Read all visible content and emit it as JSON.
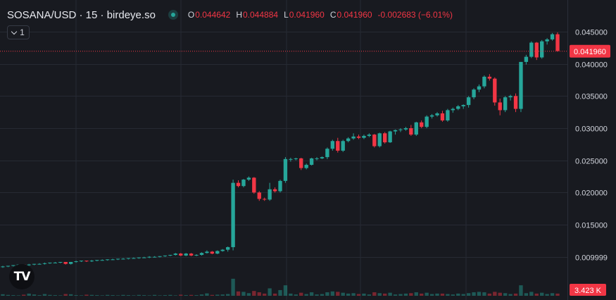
{
  "header": {
    "title": "SOSANA/USD · 15 · birdeye.so",
    "ohlc": {
      "o_label": "O",
      "o": "0.044642",
      "h_label": "H",
      "h": "0.044884",
      "l_label": "L",
      "l": "0.041960",
      "c_label": "C",
      "c": "0.041960",
      "change": "-0.002683 (−6.01%)"
    },
    "indicator_count": "1"
  },
  "logo": {
    "text": "TV",
    "icon": "tradingview-logo-icon"
  },
  "colors": {
    "up": "#26a69a",
    "down": "#f23645",
    "background": "#181a20",
    "grid": "#262a33",
    "axis_text": "#d1d4dc"
  },
  "chart_data": {
    "type": "candlestick",
    "y_axis": {
      "ticks": [
        "0.045000",
        "0.040000",
        "0.035000",
        "0.030000",
        "0.025000",
        "0.020000",
        "0.015000",
        "0.009999"
      ],
      "tick_values": [
        0.045,
        0.04,
        0.035,
        0.03,
        0.025,
        0.02,
        0.015,
        0.009999
      ],
      "range": [
        0.0063,
        0.0477
      ]
    },
    "last_price": {
      "value": 0.04196,
      "label": "0.041960"
    },
    "volume_label": "3.423 K",
    "grid": true,
    "candles": [
      [
        0.0084,
        0.0086,
        0.0083,
        0.0085
      ],
      [
        0.0085,
        0.0086,
        0.0084,
        0.0086
      ],
      [
        0.0086,
        0.0087,
        0.0085,
        0.0087
      ],
      [
        0.0087,
        0.0088,
        0.0086,
        0.0088
      ],
      [
        0.0088,
        0.0088,
        0.0086,
        0.0087
      ],
      [
        0.0087,
        0.0089,
        0.0086,
        0.0088
      ],
      [
        0.0088,
        0.0089,
        0.0087,
        0.0089
      ],
      [
        0.0089,
        0.009,
        0.0088,
        0.0089
      ],
      [
        0.0089,
        0.0091,
        0.0088,
        0.009
      ],
      [
        0.009,
        0.0091,
        0.0089,
        0.0091
      ],
      [
        0.0091,
        0.0092,
        0.009,
        0.0091
      ],
      [
        0.0091,
        0.0092,
        0.009,
        0.0092
      ],
      [
        0.0092,
        0.0092,
        0.0088,
        0.0089
      ],
      [
        0.0089,
        0.0092,
        0.0088,
        0.0092
      ],
      [
        0.0092,
        0.0094,
        0.0091,
        0.0093
      ],
      [
        0.0093,
        0.0094,
        0.0092,
        0.0094
      ],
      [
        0.0094,
        0.0094,
        0.0092,
        0.0093
      ],
      [
        0.0093,
        0.0095,
        0.0092,
        0.0094
      ],
      [
        0.0094,
        0.0095,
        0.0093,
        0.0095
      ],
      [
        0.0095,
        0.0096,
        0.0094,
        0.0095
      ],
      [
        0.0095,
        0.0096,
        0.0094,
        0.0096
      ],
      [
        0.0096,
        0.0097,
        0.0095,
        0.0096
      ],
      [
        0.0096,
        0.0097,
        0.0095,
        0.0097
      ],
      [
        0.0097,
        0.0098,
        0.0096,
        0.0097
      ],
      [
        0.0097,
        0.0098,
        0.0096,
        0.0098
      ],
      [
        0.0098,
        0.0099,
        0.0097,
        0.0098
      ],
      [
        0.0098,
        0.0099,
        0.0097,
        0.0099
      ],
      [
        0.0099,
        0.01,
        0.0098,
        0.0099
      ],
      [
        0.0099,
        0.0101,
        0.0098,
        0.01
      ],
      [
        0.01,
        0.0101,
        0.0099,
        0.01
      ],
      [
        0.01,
        0.0101,
        0.0099,
        0.0101
      ],
      [
        0.0101,
        0.0102,
        0.01,
        0.0102
      ],
      [
        0.0102,
        0.0103,
        0.0101,
        0.0103
      ],
      [
        0.0103,
        0.0106,
        0.0102,
        0.0105
      ],
      [
        0.0105,
        0.0106,
        0.0101,
        0.0102
      ],
      [
        0.0102,
        0.0106,
        0.0101,
        0.0105
      ],
      [
        0.0105,
        0.0106,
        0.0101,
        0.0102
      ],
      [
        0.0102,
        0.0104,
        0.0101,
        0.0103
      ],
      [
        0.0103,
        0.0107,
        0.0102,
        0.0106
      ],
      [
        0.0106,
        0.011,
        0.0105,
        0.0108
      ],
      [
        0.0108,
        0.0109,
        0.0104,
        0.0105
      ],
      [
        0.0105,
        0.011,
        0.0104,
        0.0109
      ],
      [
        0.0109,
        0.0112,
        0.0108,
        0.0111
      ],
      [
        0.0111,
        0.0116,
        0.0108,
        0.0115
      ],
      [
        0.0115,
        0.022,
        0.011,
        0.0215
      ],
      [
        0.0215,
        0.0219,
        0.0208,
        0.021
      ],
      [
        0.021,
        0.0221,
        0.0208,
        0.022
      ],
      [
        0.022,
        0.0225,
        0.0218,
        0.0223
      ],
      [
        0.0223,
        0.0224,
        0.0198,
        0.02
      ],
      [
        0.02,
        0.0202,
        0.0187,
        0.019
      ],
      [
        0.019,
        0.0192,
        0.0187,
        0.0189
      ],
      [
        0.0189,
        0.0215,
        0.0187,
        0.0205
      ],
      [
        0.0205,
        0.0208,
        0.02,
        0.0202
      ],
      [
        0.0202,
        0.022,
        0.02,
        0.0218
      ],
      [
        0.0218,
        0.0255,
        0.0215,
        0.0252
      ],
      [
        0.0252,
        0.0254,
        0.0248,
        0.0252
      ],
      [
        0.0252,
        0.0254,
        0.025,
        0.0253
      ],
      [
        0.0253,
        0.0254,
        0.0235,
        0.0238
      ],
      [
        0.0238,
        0.0245,
        0.0236,
        0.0243
      ],
      [
        0.0243,
        0.0254,
        0.0242,
        0.0253
      ],
      [
        0.0253,
        0.0255,
        0.025,
        0.0253
      ],
      [
        0.0253,
        0.0256,
        0.0252,
        0.0255
      ],
      [
        0.0255,
        0.027,
        0.0252,
        0.0268
      ],
      [
        0.0268,
        0.0282,
        0.0265,
        0.028
      ],
      [
        0.028,
        0.0285,
        0.0262,
        0.0265
      ],
      [
        0.0265,
        0.0282,
        0.0263,
        0.028
      ],
      [
        0.028,
        0.0286,
        0.0278,
        0.0284
      ],
      [
        0.0284,
        0.0292,
        0.0282,
        0.0287
      ],
      [
        0.0287,
        0.029,
        0.0283,
        0.0285
      ],
      [
        0.0285,
        0.029,
        0.0283,
        0.0288
      ],
      [
        0.0288,
        0.0292,
        0.0286,
        0.029
      ],
      [
        0.029,
        0.0291,
        0.027,
        0.0272
      ],
      [
        0.0272,
        0.0293,
        0.027,
        0.0292
      ],
      [
        0.0292,
        0.0294,
        0.0276,
        0.0278
      ],
      [
        0.0278,
        0.0296,
        0.0277,
        0.0295
      ],
      [
        0.0295,
        0.0298,
        0.029,
        0.0297
      ],
      [
        0.0297,
        0.03,
        0.0294,
        0.0298
      ],
      [
        0.0298,
        0.0302,
        0.0296,
        0.03
      ],
      [
        0.03,
        0.0305,
        0.0288,
        0.029
      ],
      [
        0.029,
        0.031,
        0.0288,
        0.0309
      ],
      [
        0.0309,
        0.0312,
        0.03,
        0.0302
      ],
      [
        0.0302,
        0.032,
        0.03,
        0.0318
      ],
      [
        0.0318,
        0.0322,
        0.0315,
        0.032
      ],
      [
        0.032,
        0.0325,
        0.0318,
        0.0323
      ],
      [
        0.0323,
        0.0327,
        0.031,
        0.0312
      ],
      [
        0.0312,
        0.033,
        0.031,
        0.0328
      ],
      [
        0.0328,
        0.0332,
        0.0324,
        0.033
      ],
      [
        0.033,
        0.0336,
        0.0328,
        0.0334
      ],
      [
        0.0334,
        0.0337,
        0.033,
        0.0336
      ],
      [
        0.0336,
        0.035,
        0.0332,
        0.0348
      ],
      [
        0.0348,
        0.0362,
        0.0345,
        0.036
      ],
      [
        0.036,
        0.0368,
        0.0356,
        0.0365
      ],
      [
        0.0365,
        0.0382,
        0.0362,
        0.038
      ],
      [
        0.038,
        0.0384,
        0.0374,
        0.0377
      ],
      [
        0.0377,
        0.0379,
        0.0335,
        0.034
      ],
      [
        0.034,
        0.0346,
        0.032,
        0.0328
      ],
      [
        0.0328,
        0.035,
        0.0325,
        0.0348
      ],
      [
        0.0348,
        0.0352,
        0.0343,
        0.035
      ],
      [
        0.035,
        0.0354,
        0.0325,
        0.033
      ],
      [
        0.033,
        0.0403,
        0.0325,
        0.0403
      ],
      [
        0.0403,
        0.0414,
        0.0399,
        0.0411
      ],
      [
        0.0411,
        0.0435,
        0.0409,
        0.0433
      ],
      [
        0.0433,
        0.0434,
        0.0406,
        0.041
      ],
      [
        0.041,
        0.0437,
        0.0408,
        0.0435
      ],
      [
        0.0435,
        0.044,
        0.043,
        0.0438
      ],
      [
        0.0438,
        0.0448,
        0.0436,
        0.0446
      ],
      [
        0.0446,
        0.0449,
        0.0419,
        0.042
      ]
    ],
    "volumes": [
      0.35,
      0.2,
      0.15,
      0.1,
      0.25,
      0.5,
      0.3,
      0.15,
      0.4,
      0.2,
      0.15,
      0.1,
      0.4,
      0.35,
      0.15,
      0.1,
      0.25,
      0.2,
      0.15,
      0.1,
      0.2,
      0.15,
      0.1,
      0.2,
      0.15,
      0.1,
      0.2,
      0.15,
      0.1,
      0.2,
      0.1,
      0.15,
      0.2,
      0.1,
      0.25,
      0.15,
      0.2,
      0.15,
      0.3,
      0.55,
      0.2,
      0.25,
      0.3,
      0.4,
      3.9,
      1.0,
      0.9,
      0.6,
      1.1,
      0.8,
      0.5,
      1.7,
      0.5,
      1.3,
      2.4,
      0.5,
      0.3,
      0.7,
      0.4,
      0.8,
      0.3,
      0.4,
      0.8,
      1.0,
      0.9,
      0.7,
      0.5,
      0.6,
      0.4,
      0.5,
      0.3,
      0.8,
      0.6,
      0.5,
      0.7,
      0.3,
      0.4,
      0.5,
      0.6,
      0.8,
      0.5,
      0.7,
      0.4,
      0.5,
      0.5,
      0.4,
      0.3,
      0.5,
      0.4,
      0.6,
      0.8,
      0.9,
      0.8,
      0.5,
      0.9,
      0.7,
      0.6,
      0.4,
      0.5,
      2.4,
      0.6,
      0.9,
      0.5,
      0.7,
      0.4,
      0.6,
      0.5
    ]
  }
}
